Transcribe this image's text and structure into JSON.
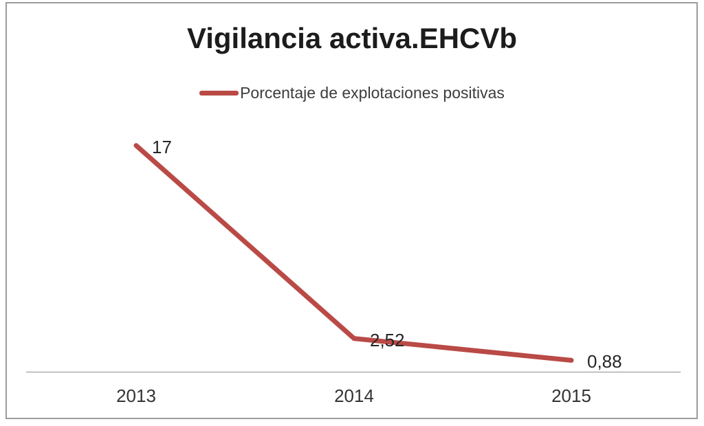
{
  "chart": {
    "line_color": "#b94a46",
    "axis_color": "#8c8c8c",
    "border_color": "#9b9b9b",
    "title_color": "#1c1c1c",
    "legend": {
      "label": "Porcentaje de explotaciones positivas"
    }
  },
  "chart_data": {
    "type": "line",
    "title": "Vigilancia activa.EHCVb",
    "categories": [
      "2013",
      "2014",
      "2015"
    ],
    "series": [
      {
        "name": "Porcentaje de explotaciones positivas",
        "values": [
          17,
          2.52,
          0.88
        ]
      }
    ],
    "data_labels": [
      "17",
      "2,52",
      "0,88"
    ],
    "xlabel": "",
    "ylabel": "",
    "ylim": [
      0,
      17.5
    ],
    "grid": false,
    "legend_position": "top",
    "x_axis_line": true,
    "y_axis_shown": false
  }
}
